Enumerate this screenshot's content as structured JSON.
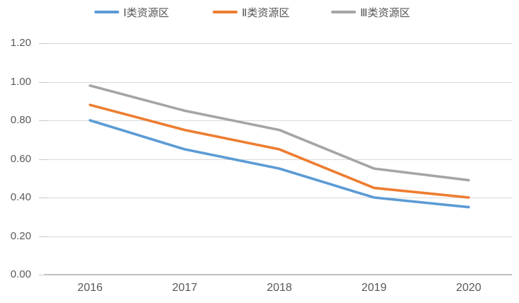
{
  "chart_data": {
    "type": "line",
    "title": "",
    "xlabel": "",
    "ylabel": "",
    "categories": [
      "2016",
      "2017",
      "2018",
      "2019",
      "2020"
    ],
    "series": [
      {
        "name": "Ⅰ类资源区",
        "color": "#5B9BD5",
        "values": [
          0.8,
          0.65,
          0.55,
          0.4,
          0.35
        ]
      },
      {
        "name": "Ⅱ类资源区",
        "color": "#ED7D31",
        "values": [
          0.88,
          0.75,
          0.65,
          0.45,
          0.4
        ]
      },
      {
        "name": "Ⅲ类资源区",
        "color": "#A5A5A5",
        "values": [
          0.98,
          0.85,
          0.75,
          0.55,
          0.49
        ]
      }
    ],
    "ylim": [
      0,
      1.2
    ],
    "ytick_values": [
      0,
      0.2,
      0.4,
      0.6,
      0.8,
      1.0,
      1.2
    ],
    "ytick_labels": [
      "0.00",
      "0.20",
      "0.40",
      "0.60",
      "0.80",
      "1.00",
      "1.20"
    ],
    "grid": true,
    "legend_position": "top",
    "colors": {
      "gridline": "#D9D9D9",
      "axis_line": "#BFBFBF",
      "tick_text": "#595959",
      "legend_text": "#555555"
    }
  }
}
